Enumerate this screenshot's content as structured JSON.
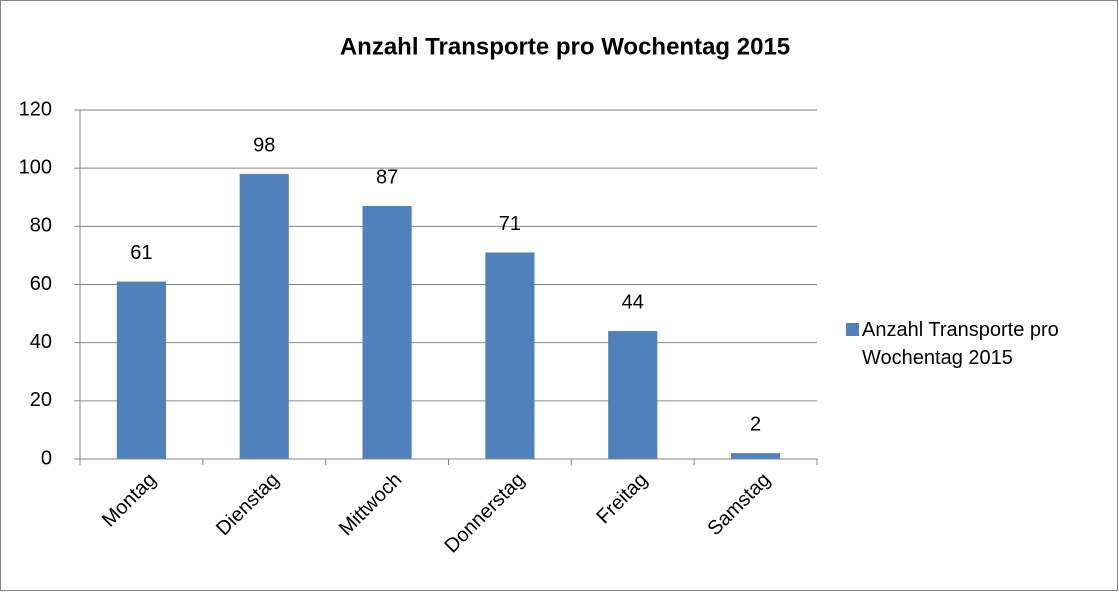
{
  "chart_data": {
    "type": "bar",
    "title": "Anzahl Transporte pro Wochentag 2015",
    "categories": [
      "Montag",
      "Dienstag",
      "Mittwoch",
      "Donnerstag",
      "Freitag",
      "Samstag"
    ],
    "series": [
      {
        "name": "Anzahl Transporte pro Wochentag 2015",
        "color": "#4f81bd",
        "values": [
          61,
          98,
          87,
          71,
          44,
          2
        ]
      }
    ],
    "ylim": [
      0,
      120
    ],
    "yticks": [
      0,
      20,
      40,
      60,
      80,
      100,
      120
    ],
    "grid": true,
    "legend": "right"
  }
}
